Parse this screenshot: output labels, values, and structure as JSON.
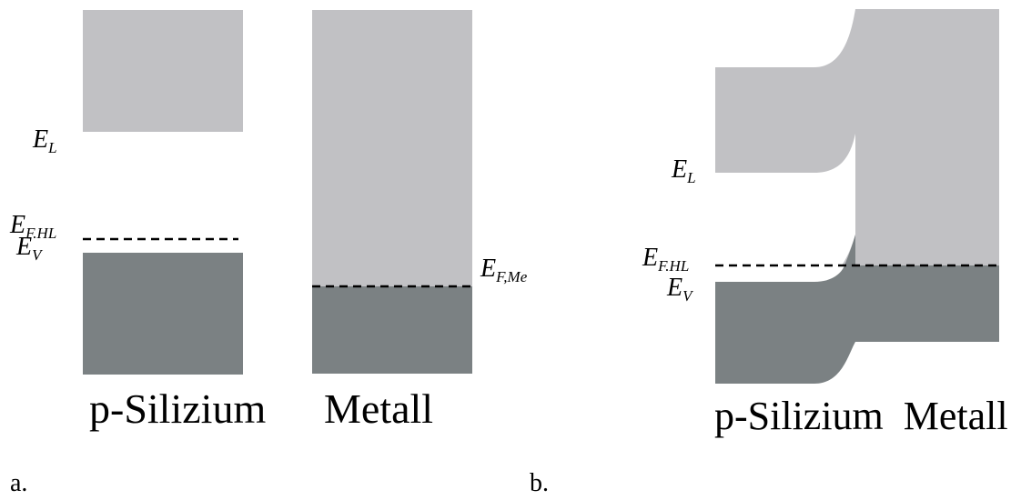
{
  "panel_a": {
    "label_EL": {
      "main": "E",
      "sub": "L"
    },
    "label_EFHL": {
      "main": "E",
      "sub": "F.HL"
    },
    "label_EV": {
      "main": "E",
      "sub": "V"
    },
    "label_EFMe": {
      "main": "E",
      "sub": "F,Me"
    },
    "caption_left": "p-Silizium",
    "caption_right": "Metall",
    "tag": "a."
  },
  "panel_b": {
    "label_EL": {
      "main": "E",
      "sub": "L"
    },
    "label_EFHL": {
      "main": "E",
      "sub": "F.HL"
    },
    "label_EV": {
      "main": "E",
      "sub": "V"
    },
    "caption": "p-Silizium  Metall",
    "tag": "b."
  },
  "colors": {
    "conduction_band": "#c1c1c4",
    "valence_band": "#7b8183",
    "fermi_line": "#000000"
  }
}
